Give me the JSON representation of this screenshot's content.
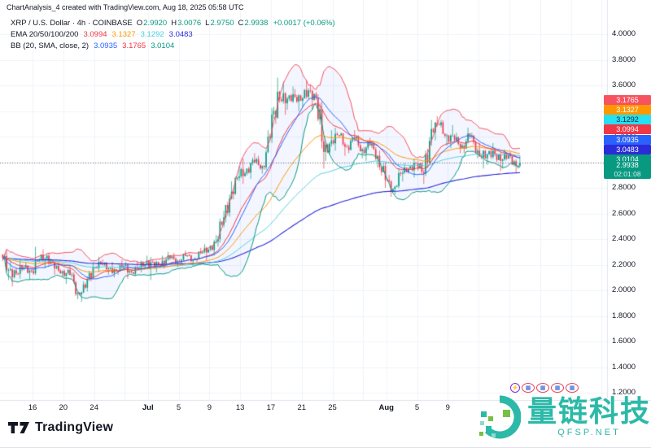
{
  "header": {
    "title": "ChartAnalysis_4 created with TradingView.com, Aug 18, 2025 05:58 UTC"
  },
  "legend": {
    "symbol_row": {
      "title": "XRP / U.S. Dollar · 4h · COINBASE",
      "ohlc": [
        {
          "label": "O",
          "value": "2.9920"
        },
        {
          "label": "H",
          "value": "3.0076"
        },
        {
          "label": "L",
          "value": "2.9750"
        },
        {
          "label": "C",
          "value": "2.9938"
        }
      ],
      "change": "+0.0017 (+0.06%)",
      "value_color": "#089981"
    },
    "ema_row": {
      "label": "EMA 20/50/100/200",
      "values": [
        {
          "text": "3.0994",
          "color": "#f23645"
        },
        {
          "text": "3.1327",
          "color": "#ff9800"
        },
        {
          "text": "3.1292",
          "color": "#45cfe0"
        },
        {
          "text": "3.0483",
          "color": "#2b2bd9"
        }
      ]
    },
    "bb_row": {
      "label": "BB (20, SMA, close, 2)",
      "values": [
        {
          "text": "3.0935",
          "color": "#2962ff"
        },
        {
          "text": "3.1765",
          "color": "#f23645"
        },
        {
          "text": "3.0104",
          "color": "#089981"
        }
      ]
    }
  },
  "price_axis": {
    "labels": [
      "4.0000",
      "3.8000",
      "3.6000",
      "3.4000",
      "3.2000",
      "3.0000",
      "2.8000",
      "2.6000",
      "2.4000",
      "2.2000",
      "2.0000",
      "1.8000",
      "1.6000",
      "1.4000",
      "1.2000"
    ],
    "badges": [
      {
        "value": "3.1765",
        "bg": "#f7525f",
        "fg": "#ffffff"
      },
      {
        "value": "3.1327",
        "bg": "#ff9800",
        "fg": "#ffffff"
      },
      {
        "value": "3.1292",
        "bg": "#25dff2",
        "fg": "#0c2a33"
      },
      {
        "value": "3.0994",
        "bg": "#f23645",
        "fg": "#ffffff"
      },
      {
        "value": "3.0935",
        "bg": "#2962ff",
        "fg": "#ffffff"
      },
      {
        "value": "3.0483",
        "bg": "#2b2bd9",
        "fg": "#ffffff"
      },
      {
        "value": "3.0104",
        "bg": "#089981",
        "fg": "#ffffff"
      }
    ],
    "last_price": {
      "value": "2.9938",
      "countdown": "02:01:08",
      "bg": "#089981"
    }
  },
  "time_axis": {
    "ticks": [
      {
        "label": "16",
        "day": 4
      },
      {
        "label": "20",
        "day": 8
      },
      {
        "label": "24",
        "day": 12
      },
      {
        "label": "Jul",
        "day": 19,
        "bold": true
      },
      {
        "label": "5",
        "day": 23
      },
      {
        "label": "9",
        "day": 27
      },
      {
        "label": "13",
        "day": 31
      },
      {
        "label": "17",
        "day": 35
      },
      {
        "label": "21",
        "day": 39
      },
      {
        "label": "25",
        "day": 43
      },
      {
        "label": "Aug",
        "day": 50,
        "bold": true
      },
      {
        "label": "5",
        "day": 54
      },
      {
        "label": "9",
        "day": 58
      }
    ]
  },
  "footer": {
    "brand": "TradingView"
  },
  "watermark": {
    "title": "量链科技",
    "subtitle": "QFSP.NET",
    "color": "#2cb9a8",
    "stamps": {
      "lightning": "⚡",
      "seals": [
        "▦",
        "▦",
        "▦",
        "▦"
      ]
    }
  },
  "chart_data": {
    "type": "candlestick",
    "symbol": "XRP / U.S. Dollar",
    "exchange": "COINBASE",
    "interval": "4h",
    "last": {
      "open": 2.992,
      "high": 3.0076,
      "low": 2.975,
      "close": 2.9938,
      "change": "+0.0017 (+0.06%)"
    },
    "ylim": [
      1.14,
      4.27
    ],
    "grid": "on",
    "up_color": "#089981",
    "down_color": "#f23645",
    "bb_fill": "rgba(41,98,255,0.055)",
    "indicators": [
      {
        "name": "EMA 20",
        "value": 3.0994,
        "color": "#f23645"
      },
      {
        "name": "EMA 50",
        "value": 3.1327,
        "color": "#ff9800"
      },
      {
        "name": "EMA 100",
        "value": 3.1292,
        "color": "#53cfe3"
      },
      {
        "name": "EMA 200",
        "value": 3.0483,
        "color": "#2b2bd9"
      },
      {
        "name": "BB basis (20, SMA)",
        "value": 3.0935,
        "color": "#2962ff"
      },
      {
        "name": "BB upper (+2σ)",
        "value": 3.1765,
        "color": "#f7525f"
      },
      {
        "name": "BB lower (-2σ)",
        "value": 3.0104,
        "color": "#089981"
      }
    ],
    "grid_days": [
      4,
      8,
      12,
      16,
      19,
      23,
      27,
      31,
      35,
      39,
      43,
      47,
      50,
      54,
      58,
      62,
      66,
      70,
      74,
      78
    ],
    "columns": [
      "date",
      "open",
      "high",
      "low",
      "close"
    ],
    "daily": [
      [
        "Jun 12",
        2.28,
        2.31,
        2.08,
        2.16
      ],
      [
        "Jun 13",
        2.16,
        2.23,
        2.03,
        2.13
      ],
      [
        "Jun 14",
        2.13,
        2.24,
        2.09,
        2.18
      ],
      [
        "Jun 15",
        2.18,
        2.22,
        2.08,
        2.15
      ],
      [
        "Jun 16",
        2.15,
        2.34,
        2.12,
        2.24
      ],
      [
        "Jun 17",
        2.24,
        2.32,
        2.17,
        2.27
      ],
      [
        "Jun 18",
        2.27,
        2.29,
        2.12,
        2.17
      ],
      [
        "Jun 19",
        2.17,
        2.22,
        2.1,
        2.15
      ],
      [
        "Jun 20",
        2.15,
        2.2,
        2.05,
        2.12
      ],
      [
        "Jun 21",
        2.12,
        2.14,
        1.93,
        1.98
      ],
      [
        "Jun 22",
        1.98,
        2.07,
        1.91,
        2.02
      ],
      [
        "Jun 23",
        2.02,
        2.22,
        1.99,
        2.18
      ],
      [
        "Jun 24",
        2.18,
        2.26,
        2.14,
        2.21
      ],
      [
        "Jun 25",
        2.21,
        2.24,
        2.12,
        2.17
      ],
      [
        "Jun 26",
        2.17,
        2.22,
        2.1,
        2.15
      ],
      [
        "Jun 27",
        2.15,
        2.24,
        2.12,
        2.19
      ],
      [
        "Jun 28",
        2.19,
        2.22,
        2.09,
        2.14
      ],
      [
        "Jun 29",
        2.14,
        2.23,
        2.11,
        2.18
      ],
      [
        "Jun 30",
        2.18,
        2.27,
        2.14,
        2.23
      ],
      [
        "Jul 1",
        2.23,
        2.26,
        2.08,
        2.18
      ],
      [
        "Jul 2",
        2.18,
        2.27,
        2.14,
        2.23
      ],
      [
        "Jul 3",
        2.23,
        2.3,
        2.17,
        2.25
      ],
      [
        "Jul 4",
        2.25,
        2.29,
        2.18,
        2.23
      ],
      [
        "Jul 5",
        2.23,
        2.31,
        2.2,
        2.27
      ],
      [
        "Jul 6",
        2.27,
        2.29,
        2.19,
        2.24
      ],
      [
        "Jul 7",
        2.24,
        2.33,
        2.21,
        2.29
      ],
      [
        "Jul 8",
        2.29,
        2.36,
        2.23,
        2.32
      ],
      [
        "Jul 9",
        2.32,
        2.43,
        2.27,
        2.38
      ],
      [
        "Jul 10",
        2.38,
        2.62,
        2.34,
        2.57
      ],
      [
        "Jul 11",
        2.57,
        2.85,
        2.53,
        2.77
      ],
      [
        "Jul 12",
        2.77,
        2.97,
        2.71,
        2.89
      ],
      [
        "Jul 13",
        2.89,
        3.03,
        2.83,
        2.95
      ],
      [
        "Jul 14",
        2.95,
        3.07,
        2.87,
        3.0
      ],
      [
        "Jul 15",
        3.0,
        3.05,
        2.91,
        2.97
      ],
      [
        "Jul 16",
        2.97,
        3.25,
        2.94,
        3.19
      ],
      [
        "Jul 17",
        3.19,
        3.66,
        3.15,
        3.55
      ],
      [
        "Jul 18",
        3.55,
        3.63,
        3.37,
        3.46
      ],
      [
        "Jul 19",
        3.46,
        3.59,
        3.41,
        3.53
      ],
      [
        "Jul 20",
        3.53,
        3.57,
        3.4,
        3.48
      ],
      [
        "Jul 21",
        3.48,
        3.64,
        3.43,
        3.56
      ],
      [
        "Jul 22",
        3.56,
        3.61,
        3.41,
        3.5
      ],
      [
        "Jul 23",
        3.5,
        3.53,
        2.95,
        3.08
      ],
      [
        "Jul 24",
        3.08,
        3.25,
        3.01,
        3.17
      ],
      [
        "Jul 25",
        3.17,
        3.27,
        3.09,
        3.21
      ],
      [
        "Jul 26",
        3.21,
        3.23,
        3.05,
        3.12
      ],
      [
        "Jul 27",
        3.12,
        3.25,
        3.07,
        3.18
      ],
      [
        "Jul 28",
        3.18,
        3.21,
        3.03,
        3.1
      ],
      [
        "Jul 29",
        3.1,
        3.19,
        3.01,
        3.13
      ],
      [
        "Jul 30",
        3.13,
        3.15,
        2.96,
        3.05
      ],
      [
        "Jul 31",
        3.05,
        3.09,
        2.8,
        2.86
      ],
      [
        "Aug 1",
        2.86,
        2.9,
        2.73,
        2.79
      ],
      [
        "Aug 2",
        2.79,
        2.95,
        2.75,
        2.91
      ],
      [
        "Aug 3",
        2.91,
        2.99,
        2.85,
        2.95
      ],
      [
        "Aug 4",
        2.95,
        3.03,
        2.88,
        2.99
      ],
      [
        "Aug 5",
        2.99,
        3.01,
        2.83,
        2.91
      ],
      [
        "Aug 6",
        2.91,
        3.33,
        2.89,
        3.26
      ],
      [
        "Aug 7",
        3.26,
        3.36,
        3.17,
        3.29
      ],
      [
        "Aug 8",
        3.29,
        3.33,
        3.13,
        3.21
      ],
      [
        "Aug 9",
        3.21,
        3.29,
        3.11,
        3.17
      ],
      [
        "Aug 10",
        3.17,
        3.23,
        3.07,
        3.13
      ],
      [
        "Aug 11",
        3.13,
        3.27,
        3.07,
        3.2
      ],
      [
        "Aug 12",
        3.2,
        3.23,
        3.03,
        3.09
      ],
      [
        "Aug 13",
        3.09,
        3.15,
        2.95,
        3.03
      ],
      [
        "Aug 14",
        3.03,
        3.15,
        2.98,
        3.09
      ],
      [
        "Aug 15",
        3.09,
        3.11,
        2.93,
        3.01
      ],
      [
        "Aug 16",
        3.01,
        3.1,
        2.95,
        3.06
      ],
      [
        "Aug 17",
        3.06,
        3.08,
        2.92,
        2.97
      ],
      [
        "Aug 18",
        2.97,
        3.05,
        2.95,
        2.9938
      ]
    ]
  }
}
